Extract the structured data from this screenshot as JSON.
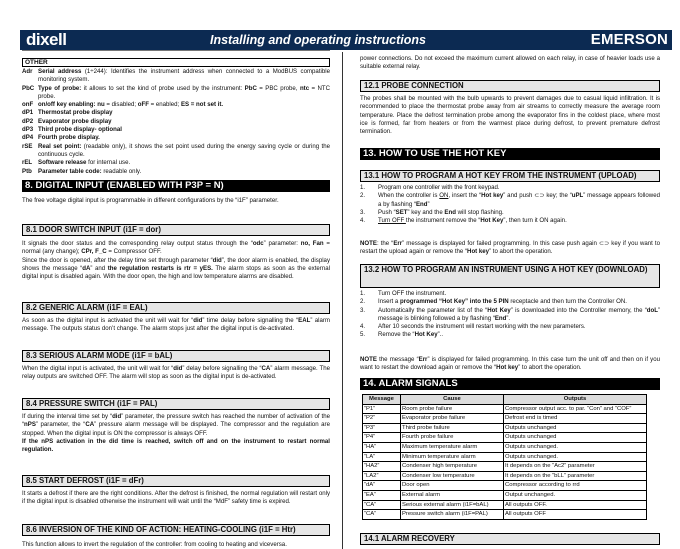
{
  "header": {
    "logo": "dixell",
    "title": "Installing and operating instructions",
    "brand": "EMERSON",
    "color": "#0c2a52"
  },
  "left": {
    "other_title": "OTHER",
    "params": [
      {
        "k": "Adr",
        "v": [
          {
            "t": "Serial address",
            "b": 1
          },
          {
            "t": " (1÷244): Identifies the instrument address when connected to a ModBUS compatible monitoring system."
          }
        ]
      },
      {
        "k": "PbC",
        "v": [
          {
            "t": "Type of probe:",
            "b": 1
          },
          {
            "t": " it allows to set the kind of probe used by the instrument: "
          },
          {
            "t": "PbC",
            "b": 1
          },
          {
            "t": " = PBC probe, "
          },
          {
            "t": "ntc",
            "b": 1
          },
          {
            "t": " = NTC probe."
          }
        ]
      },
      {
        "k": "onF",
        "v": [
          {
            "t": "on/off key enabling:",
            "b": 1
          },
          {
            "t": " "
          },
          {
            "t": "nu",
            "b": 1
          },
          {
            "t": " = disabled; "
          },
          {
            "t": "oFF",
            "b": 1
          },
          {
            "t": " = enabled; "
          },
          {
            "t": "ES = not set it.",
            "b": 1
          }
        ]
      },
      {
        "k": "dP1",
        "v": [
          {
            "t": "Thermostat probe display",
            "b": 1
          }
        ]
      },
      {
        "k": "dP2",
        "v": [
          {
            "t": "Evaporator probe display",
            "b": 1
          }
        ]
      },
      {
        "k": "dP3",
        "v": [
          {
            "t": "Third probe display- optional",
            "b": 1
          }
        ]
      },
      {
        "k": "dP4",
        "v": [
          {
            "t": "Fourth probe display.",
            "b": 1
          }
        ]
      },
      {
        "k": "rSE",
        "v": [
          {
            "t": "Real set point:",
            "b": 1
          },
          {
            "t": " (readable only), it shows the set point used during the energy saving cycle or during the continuous cycle."
          }
        ]
      },
      {
        "k": "rEL",
        "v": [
          {
            "t": "Software release",
            "b": 1
          },
          {
            "t": " for internal use."
          }
        ]
      },
      {
        "k": "Ptb",
        "v": [
          {
            "t": "Parameter table code:",
            "b": 1
          },
          {
            "t": " readable only."
          }
        ]
      }
    ],
    "s8_title": "8.   DIGITAL INPUT (ENABLED WITH P3P = N)",
    "s8_text": [
      {
        "t": "The free voltage digital input is programmable in different configurations by the “i1F” parameter."
      }
    ],
    "s81_title": "8.1    DOOR SWITCH INPUT  (i1F = dor)",
    "s81_text": [
      {
        "t": "It signals the door status and the corresponding relay output status through the “"
      },
      {
        "t": "odc",
        "b": 1
      },
      {
        "t": "” parameter: "
      },
      {
        "t": "no, Fan",
        "b": 1
      },
      {
        "t": " = normal (any change); "
      },
      {
        "t": "CPr,   F_C",
        "b": 1
      },
      {
        "t": " = Compressor OFF."
      }
    ],
    "s81_text2": [
      {
        "t": "Since the door is opened, after the delay time set through parameter “"
      },
      {
        "t": "did",
        "b": 1
      },
      {
        "t": "”, the door alarm is enabled, the display shows the message “"
      },
      {
        "t": "dA",
        "b": 1
      },
      {
        "t": "” and "
      },
      {
        "t": "the regulation restarts is rtr = yES.",
        "b": 1
      },
      {
        "t": " The alarm stops as soon as the external digital input is disabled again. With the door open, the high and low temperature alarms are disabled."
      }
    ],
    "s82_title": "8.2    GENERIC ALARM (i1F = EAL)",
    "s82_text": [
      {
        "t": "As soon as the digital input is activated the unit will wait for “"
      },
      {
        "t": "did",
        "b": 1
      },
      {
        "t": "” time delay before signalling the “"
      },
      {
        "t": "EAL",
        "b": 1
      },
      {
        "t": "” alarm message. The outputs status don’t change. The alarm stops just after the digital input is de-activated."
      }
    ],
    "s83_title": "8.3    SERIOUS ALARM MODE (i1F = bAL)",
    "s83_text": [
      {
        "t": "When the digital input is activated, the unit will wait for “"
      },
      {
        "t": "did",
        "b": 1
      },
      {
        "t": "” delay before signalling the “"
      },
      {
        "t": "CA",
        "b": 1
      },
      {
        "t": "” alarm message. The relay outputs are switched OFF. The alarm will stop as soon as the digital input is de-activated."
      }
    ],
    "s84_title": "8.4    PRESSURE SWITCH (i1F = PAL)",
    "s84_text": [
      {
        "t": "If during the interval time set by “"
      },
      {
        "t": "did",
        "b": 1
      },
      {
        "t": "” parameter, the pressure switch has reached the number of activation of  the “"
      },
      {
        "t": "nPS",
        "b": 1
      },
      {
        "t": "” parameter, the “"
      },
      {
        "t": "CA",
        "b": 1
      },
      {
        "t": "” pressure alarm message will be displayed. The compressor and the regulation are stopped. When the digital input is ON the compressor is always OFF."
      }
    ],
    "s84_text2": [
      {
        "t": "If the nPS activation in the did time is reached, switch off and on the instrument to restart normal regulation.",
        "b": 1
      }
    ],
    "s85_title": "8.5    START DEFROST (i1F = dFr)",
    "s85_text": [
      {
        "t": "It starts a defrost if there are the right conditions. After the defrost is finished, the normal regulation will restart only if the digital input is disabled otherwise the instrument will wait until the “MdF” safety time is expired."
      }
    ],
    "s86_title": "8.6    INVERSION OF  THE KIND OF ACTION: HEATING-COOLING (i1F = Htr)",
    "s86_text": [
      {
        "t": "This function allows to invert the regulation of the controller: from cooling to heating and viceversa."
      }
    ]
  },
  "right": {
    "intro": [
      {
        "t": "power connections. Do not exceed the maximum current allowed on each relay, in case of heavier loads use a suitable external relay."
      }
    ],
    "s121_title": "12.1   PROBE CONNECTION",
    "s121_text": [
      {
        "t": "The probes shall be mounted with the bulb upwards to prevent damages due to casual liquid infiltration. It is recommended to place the thermostat probe away from air streams to correctly measure the average room temperature. Place the defrost termination probe among the evaporator fins in the coldest place, where most ice is formed, far from heaters or from the warmest place during defrost, to prevent premature defrost termination."
      }
    ],
    "s13_title": "13.   HOW TO USE THE HOT KEY",
    "s131_title": "13.1    HOW TO PROGRAM A HOT KEY FROM THE INSTRUMENT (UPLOAD)",
    "s131_list": [
      {
        "n": "1.",
        "v": [
          {
            "t": "Program one controller with the front keypad."
          }
        ]
      },
      {
        "n": "2.",
        "v": [
          {
            "t": "When the controller is "
          },
          {
            "t": "ON",
            "u": 1
          },
          {
            "t": ", insert the “"
          },
          {
            "t": "Hot key",
            "b": 1
          },
          {
            "t": "” and push ⊂⊃ key; the  “"
          },
          {
            "t": "uPL",
            "b": 1
          },
          {
            "t": "” message appears followed a by flashing “"
          },
          {
            "t": "End",
            "b": 1
          },
          {
            "t": "”"
          }
        ]
      },
      {
        "n": "3.",
        "v": [
          {
            "t": "Push “"
          },
          {
            "t": "SET",
            "b": 1
          },
          {
            "t": "” key and the "
          },
          {
            "t": "End",
            "b": 1
          },
          {
            "t": " will stop flashing."
          }
        ]
      },
      {
        "n": "4.",
        "v": [
          {
            "t": "Turn OFF ",
            "u": 1
          },
          {
            "t": "the instrument remove the “"
          },
          {
            "t": "Hot Key",
            "b": 1
          },
          {
            "t": "”, then turn it ON again."
          }
        ]
      }
    ],
    "s131_note": [
      {
        "t": "NOTE",
        "b": 1
      },
      {
        "t": ": the “"
      },
      {
        "t": "Err",
        "b": 1
      },
      {
        "t": "” message is displayed for failed programming. In this case push again ⊂⊃ key if you want to restart the upload again or remove the “"
      },
      {
        "t": "Hot key",
        "b": 1
      },
      {
        "t": "” to abort the operation."
      }
    ],
    "s132_title": "13.2    HOW TO PROGRAM AN INSTRUMENT USING A HOT KEY (DOWNLOAD)",
    "s132_list": [
      {
        "n": "1.",
        "v": [
          {
            "t": "Turn OFF the instrument."
          }
        ]
      },
      {
        "n": "2.",
        "v": [
          {
            "t": "Insert  a "
          },
          {
            "t": "programmed “Hot Key” into the 5 PIN",
            "b": 1
          },
          {
            "t": " receptacle and then turn the Controller ON."
          }
        ]
      },
      {
        "n": "3.",
        "v": [
          {
            "t": "Automatically the parameter list of the “"
          },
          {
            "t": "Hot Key",
            "b": 1
          },
          {
            "t": "” is downloaded into the Controller memory, the “"
          },
          {
            "t": "doL",
            "b": 1
          },
          {
            "t": "” message is blinking followed a by flashing “"
          },
          {
            "t": "End",
            "b": 1
          },
          {
            "t": "”."
          }
        ]
      },
      {
        "n": "4.",
        "v": [
          {
            "t": "After 10 seconds the instrument will restart working with the new parameters."
          }
        ]
      },
      {
        "n": "5.",
        "v": [
          {
            "t": "Remove the “"
          },
          {
            "t": "Hot Key",
            "b": 1
          },
          {
            "t": "”.."
          }
        ]
      }
    ],
    "s132_note": [
      {
        "t": "NOTE",
        "b": 1
      },
      {
        "t": " the message “"
      },
      {
        "t": "Err",
        "b": 1
      },
      {
        "t": "” is displayed for failed programming. In this case turn the unit off and then on if you want to restart the download again or remove the “"
      },
      {
        "t": "Hot key",
        "b": 1
      },
      {
        "t": "” to abort the operation."
      }
    ],
    "s14_title": "14.   ALARM SIGNALS",
    "alarm_table": {
      "headers": [
        "Message",
        "Cause",
        "Outputs"
      ],
      "rows": [
        [
          "“P1”",
          "Room probe  failure",
          "Compressor output acc. to par. “Con” and “COF”"
        ],
        [
          "“P2”",
          "Evaporator probe  failure",
          "Defrost end is timed"
        ],
        [
          "“P3”",
          "Third probe  failure",
          "Outputs unchanged"
        ],
        [
          "“P4”",
          "Fourth probe  failure",
          "Outputs unchanged"
        ],
        [
          "“HA”",
          "Maximum temperature alarm",
          "Outputs unchanged."
        ],
        [
          "“LA”",
          "Minimum temperature alarm",
          "Outputs unchanged."
        ],
        [
          "“HA2”",
          "Condenser high temperature",
          "It depends on the “Ac2” parameter"
        ],
        [
          "“LA2”",
          "Condenser low temperature",
          "It depends on the “bLL” parameter"
        ],
        [
          "“dA”",
          "Door open",
          "Compressor according to rrd"
        ],
        [
          "“EA”",
          "External alarm",
          "Output unchanged."
        ],
        [
          "“CA”",
          "Serious external alarm (i1F=bAL)",
          "All outputs OFF."
        ],
        [
          "“CA”",
          "Pressure switch alarm (i1F=PAL)",
          "All outputs OFF"
        ]
      ]
    },
    "s141_title": "14.1   ALARM RECOVERY"
  }
}
